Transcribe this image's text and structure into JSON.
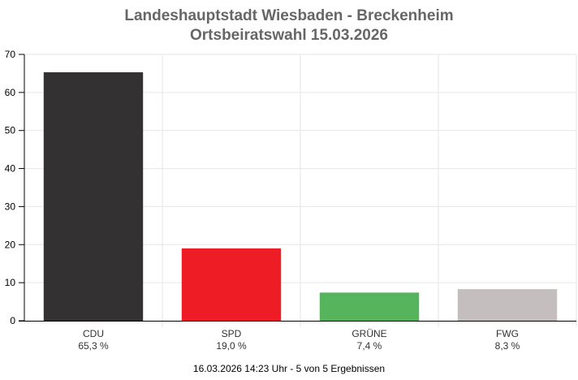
{
  "chart_data": {
    "type": "bar",
    "title": "Landeshauptstadt Wiesbaden - Breckenheim",
    "subtitle": "Ortsbeiratswahl 15.03.2026",
    "categories": [
      "CDU",
      "SPD",
      "GRÜNE",
      "FWG"
    ],
    "values": [
      65.3,
      19.0,
      7.4,
      8.3
    ],
    "value_labels": [
      "65,3 %",
      "19,0 %",
      "7,4 %",
      "8,3 %"
    ],
    "colors": [
      "#333132",
      "#ee1c25",
      "#56b45d",
      "#c4bebe"
    ],
    "ylim": [
      0,
      70
    ],
    "yticks": [
      0,
      10,
      20,
      30,
      40,
      50,
      60,
      70
    ],
    "grid": true,
    "xlabel": "",
    "ylabel": ""
  },
  "footer": "16.03.2026 14:23 Uhr - 5 von 5 Ergebnissen"
}
